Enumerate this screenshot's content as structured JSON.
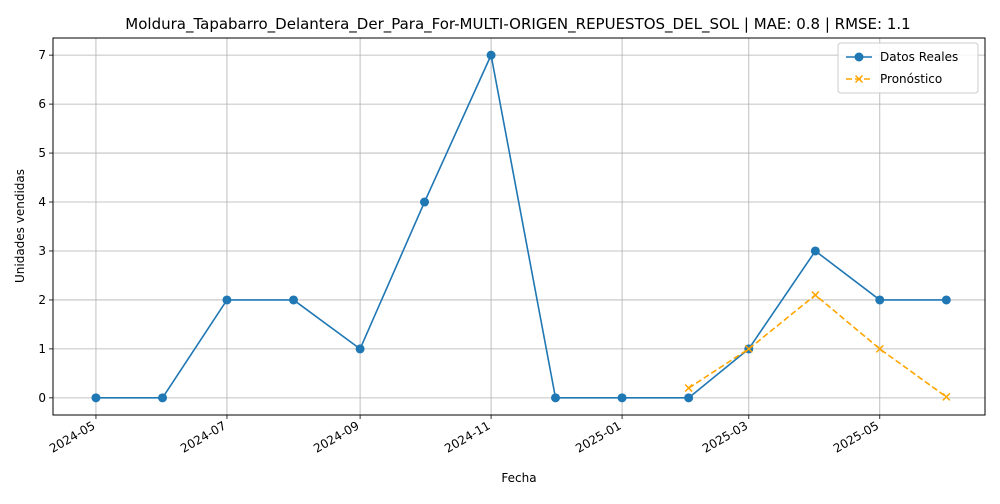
{
  "chart_data": {
    "type": "line",
    "title": "Moldura_Tapabarro_Delantera_Der_Para_For-MULTI-ORIGEN_REPUESTOS_DEL_SOL | MAE: 0.8 | RMSE: 1.1",
    "xlabel": "Fecha",
    "ylabel": "Unidades vendidas",
    "grid": true,
    "legend_position": "top-right",
    "ylim": [
      -0.35,
      7.35
    ],
    "xlim": [
      "2024-04-11",
      "2025-06-19"
    ],
    "x_ticks": [
      "2024-05",
      "2024-07",
      "2024-09",
      "2024-11",
      "2025-01",
      "2025-03",
      "2025-05"
    ],
    "y_ticks": [
      0,
      1,
      2,
      3,
      4,
      5,
      6,
      7
    ],
    "series": [
      {
        "name": "Datos Reales",
        "color": "#1f77b4",
        "marker": "circle",
        "linestyle": "solid",
        "x": [
          "2024-05-01",
          "2024-06-01",
          "2024-07-01",
          "2024-08-01",
          "2024-09-01",
          "2024-10-01",
          "2024-11-01",
          "2024-12-01",
          "2025-01-01",
          "2025-02-01",
          "2025-03-01",
          "2025-04-01",
          "2025-05-01",
          "2025-06-01"
        ],
        "values": [
          0,
          0,
          2,
          2,
          1,
          4,
          7,
          0,
          0,
          0,
          1,
          3,
          2,
          2
        ]
      },
      {
        "name": "Pronóstico",
        "color": "#ffa500",
        "marker": "x",
        "linestyle": "dashed",
        "x": [
          "2025-02-01",
          "2025-03-01",
          "2025-04-01",
          "2025-05-01",
          "2025-06-01"
        ],
        "values": [
          0.2,
          1.0,
          2.1,
          1.0,
          0.02
        ]
      }
    ]
  }
}
